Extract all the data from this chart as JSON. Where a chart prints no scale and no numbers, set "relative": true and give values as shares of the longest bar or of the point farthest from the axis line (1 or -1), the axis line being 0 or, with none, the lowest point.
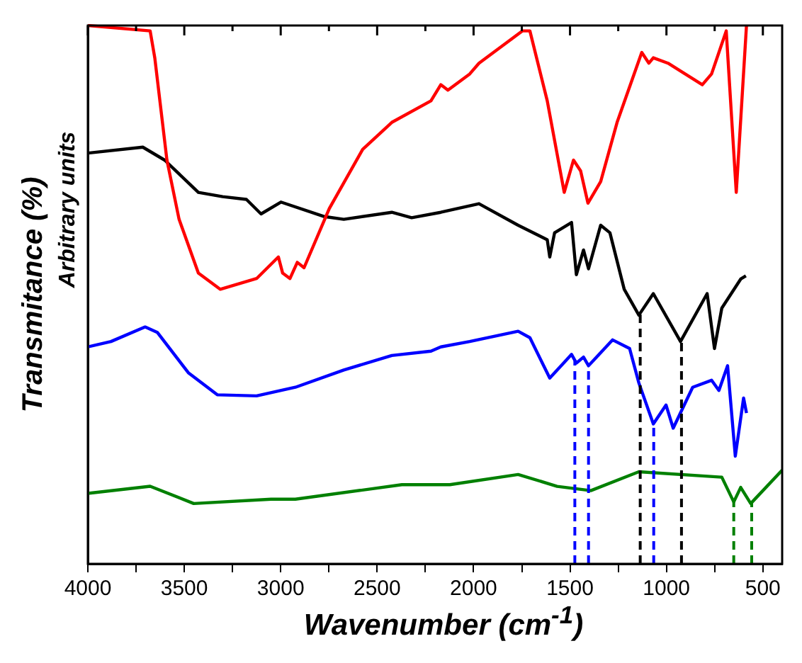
{
  "chart_data": {
    "type": "line",
    "relative": true,
    "xlabel": "Wavenumber (cm$^{-1}$)",
    "ylabel": "Transmitance (%)",
    "annotations": [
      "Arbitrary units"
    ],
    "xlim": [
      4000,
      400
    ],
    "xticks": [
      4000,
      {
        "value": 3750,
        "label": null
      },
      3500,
      {
        "value": 3250,
        "label": null
      },
      3000,
      {
        "value": 2750,
        "label": null
      },
      2500,
      {
        "value": 2250,
        "label": null
      },
      2000,
      {
        "value": 1750,
        "label": null
      },
      1500,
      {
        "value": 1250,
        "label": null
      },
      1000,
      {
        "value": 750,
        "label": null
      },
      500
    ],
    "tick_labels": "x",
    "grid": false,
    "legend": false,
    "marker": "none",
    "line_style": "solid",
    "series": [
      {
        "color": "#ff0000",
        "x": [
          4000,
          3677,
          3653,
          3590,
          3527,
          3427,
          3313,
          3125,
          3012,
          2990,
          2952,
          2914,
          2879,
          2748,
          2575,
          2424,
          2221,
          2170,
          2133,
          2020,
          1972,
          1746,
          1708,
          1618,
          1530,
          1482,
          1445,
          1407,
          1341,
          1256,
          1128,
          1091,
          1068,
          992,
          814,
          766,
          690,
          638,
          585
        ],
        "values": [
          1.0,
          0.99,
          0.94,
          0.75,
          0.64,
          0.54,
          0.51,
          0.53,
          0.57,
          0.54,
          0.53,
          0.56,
          0.55,
          0.66,
          0.77,
          0.82,
          0.86,
          0.89,
          0.88,
          0.91,
          0.93,
          0.99,
          0.99,
          0.86,
          0.69,
          0.75,
          0.73,
          0.67,
          0.71,
          0.82,
          0.95,
          0.93,
          0.94,
          0.93,
          0.89,
          0.91,
          0.99,
          0.69,
          1.0
        ]
      },
      {
        "color": "#000000",
        "x": [
          4000,
          3715,
          3602,
          3427,
          3301,
          3178,
          3102,
          2999,
          2773,
          2673,
          2424,
          2321,
          2170,
          1972,
          1769,
          1618,
          1605,
          1580,
          1492,
          1467,
          1430,
          1404,
          1341,
          1293,
          1219,
          1143,
          1068,
          927,
          789,
          751,
          713,
          615,
          588
        ],
        "values": [
          0.763,
          0.774,
          0.75,
          0.69,
          0.682,
          0.677,
          0.65,
          0.672,
          0.645,
          0.64,
          0.653,
          0.643,
          0.653,
          0.669,
          0.629,
          0.602,
          0.57,
          0.615,
          0.634,
          0.537,
          0.583,
          0.548,
          0.629,
          0.615,
          0.51,
          0.462,
          0.502,
          0.413,
          0.502,
          0.4,
          0.475,
          0.529,
          0.535
        ]
      },
      {
        "color": "#0000ff",
        "x": [
          4000,
          3880,
          3703,
          3640,
          3479,
          3329,
          3125,
          2924,
          2673,
          2424,
          2221,
          2170,
          2020,
          1769,
          1708,
          1605,
          1492,
          1467,
          1430,
          1404,
          1279,
          1191,
          1143,
          1068,
          1002,
          965,
          864,
          766,
          728,
          683,
          643,
          600,
          585
        ],
        "values": [
          0.403,
          0.413,
          0.44,
          0.43,
          0.355,
          0.314,
          0.312,
          0.328,
          0.36,
          0.387,
          0.395,
          0.403,
          0.413,
          0.432,
          0.42,
          0.345,
          0.389,
          0.373,
          0.384,
          0.368,
          0.416,
          0.4,
          0.336,
          0.26,
          0.295,
          0.252,
          0.328,
          0.341,
          0.322,
          0.368,
          0.2,
          0.308,
          0.28
        ]
      },
      {
        "color": "#008000",
        "x": [
          4000,
          3677,
          3451,
          3050,
          2924,
          2372,
          2221,
          2123,
          1769,
          1567,
          1392,
          1143,
          713,
          651,
          615,
          563,
          400
        ],
        "values": [
          0.131,
          0.144,
          0.112,
          0.12,
          0.12,
          0.147,
          0.147,
          0.147,
          0.166,
          0.144,
          0.136,
          0.171,
          0.161,
          0.115,
          0.142,
          0.112,
          0.174
        ]
      }
    ],
    "ref_lines": [
      {
        "axis": "x",
        "value": 1475,
        "color": "#0000ff",
        "line_style": "dashed"
      },
      {
        "axis": "x",
        "value": 1404,
        "color": "#0000ff",
        "line_style": "dashed"
      },
      {
        "axis": "x",
        "value": 1066,
        "color": "#0000ff",
        "line_style": "dashed"
      },
      {
        "axis": "x",
        "value": 1136,
        "color": "#000000",
        "line_style": "dashed"
      },
      {
        "axis": "x",
        "value": 922,
        "color": "#000000",
        "line_style": "dashed"
      },
      {
        "axis": "x",
        "value": 651,
        "color": "#008000",
        "line_style": "dashed"
      },
      {
        "axis": "x",
        "value": 558,
        "color": "#008000",
        "line_style": "dashed"
      }
    ]
  }
}
